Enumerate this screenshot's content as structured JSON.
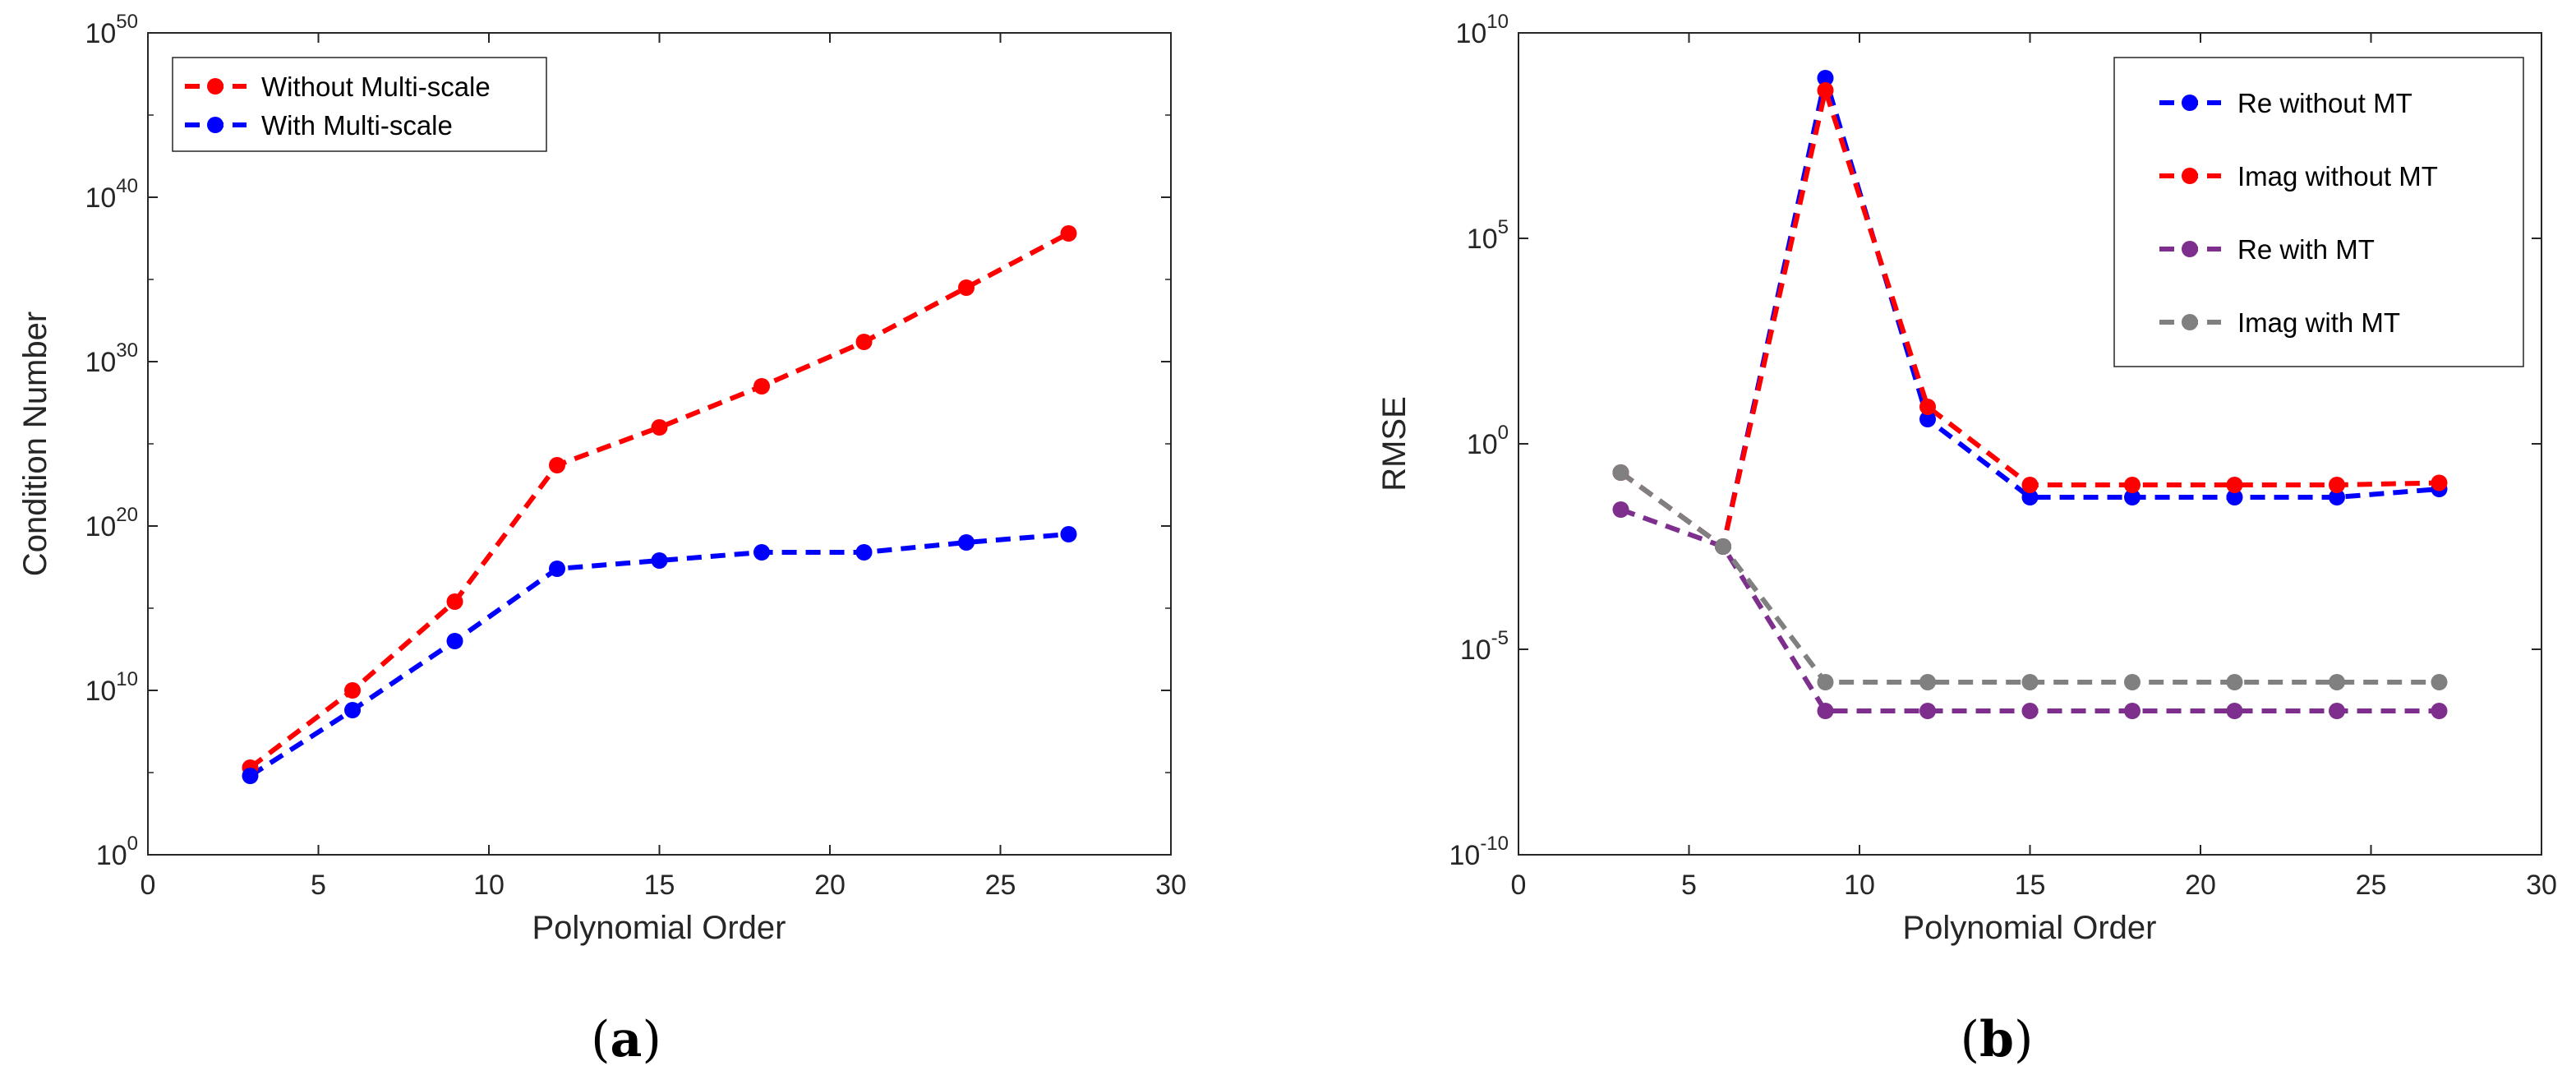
{
  "chart_data": [
    {
      "type": "line",
      "panel": "(a)",
      "panel_letter": "a",
      "xlabel": "Polynomial Order",
      "ylabel": "Condition Number",
      "yscale": "log",
      "xlim": [
        0,
        30
      ],
      "ylim_exp": [
        0,
        50
      ],
      "x_ticks": [
        0,
        5,
        10,
        15,
        20,
        25,
        30
      ],
      "y_tick_exps": [
        0,
        10,
        20,
        30,
        40,
        50
      ],
      "x": [
        3,
        6,
        9,
        12,
        15,
        18,
        21,
        24,
        27
      ],
      "legend_position": "top-left",
      "series": [
        {
          "name": "Without Multi-scale",
          "color": "#ff0000",
          "log10_values": [
            5.3,
            10.0,
            15.4,
            23.7,
            26.0,
            28.5,
            31.2,
            34.5,
            37.8
          ]
        },
        {
          "name": "With Multi-scale",
          "color": "#0000ff",
          "log10_values": [
            4.8,
            8.8,
            13.0,
            17.4,
            17.9,
            18.4,
            18.4,
            19.0,
            19.5
          ]
        }
      ]
    },
    {
      "type": "line",
      "panel": "(b)",
      "panel_letter": "b",
      "xlabel": "Polynomial Order",
      "ylabel": "RMSE",
      "yscale": "log",
      "xlim": [
        0,
        30
      ],
      "ylim_exp": [
        -10,
        10
      ],
      "x_ticks": [
        0,
        5,
        10,
        15,
        20,
        25,
        30
      ],
      "y_tick_exps": [
        -10,
        -5,
        0,
        5,
        10
      ],
      "x": [
        3,
        6,
        9,
        12,
        15,
        18,
        21,
        24,
        27
      ],
      "legend_position": "top-right",
      "series": [
        {
          "name": "Re without MT",
          "color": "#0000ff",
          "log10_values": [
            -0.7,
            -2.5,
            8.9,
            0.6,
            -1.3,
            -1.3,
            -1.3,
            -1.3,
            -1.1
          ]
        },
        {
          "name": "Imag without MT",
          "color": "#ff0000",
          "log10_values": [
            -0.7,
            -2.5,
            8.6,
            0.9,
            -1.0,
            -1.0,
            -1.0,
            -1.0,
            -0.95
          ]
        },
        {
          "name": "Re with MT",
          "color": "#7e2f8e",
          "log10_values": [
            -1.6,
            -2.5,
            -6.5,
            -6.5,
            -6.5,
            -6.5,
            -6.5,
            -6.5,
            -6.5
          ]
        },
        {
          "name": "Imag with MT",
          "color": "#808080",
          "log10_values": [
            -0.7,
            -2.5,
            -5.8,
            -5.8,
            -5.8,
            -5.8,
            -5.8,
            -5.8,
            -5.8
          ]
        }
      ]
    }
  ]
}
